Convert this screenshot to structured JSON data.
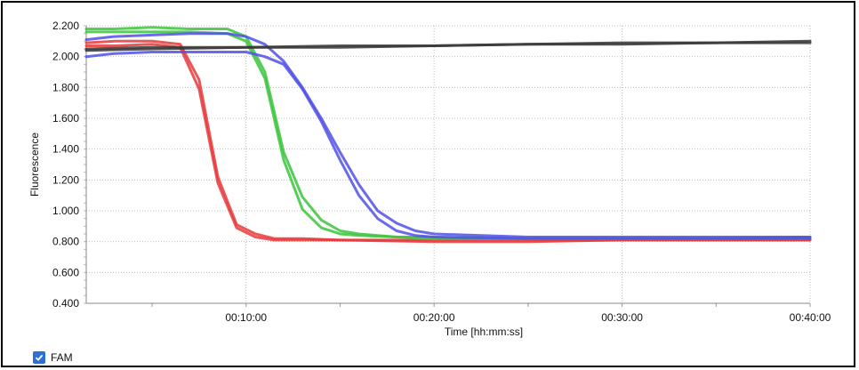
{
  "chart_data": {
    "type": "line",
    "title": "",
    "xlabel": "Time [hh:mm:ss]",
    "ylabel": "Fluorescence",
    "x_unit": "minutes",
    "xlim": [
      1.5,
      40
    ],
    "ylim": [
      0.4,
      2.2
    ],
    "x_ticks": [
      10,
      20,
      30,
      40
    ],
    "x_tick_labels": [
      "00:10:00",
      "00:20:00",
      "00:30:00",
      "00:40:00"
    ],
    "y_ticks": [
      0.4,
      0.6,
      0.8,
      1.0,
      1.2,
      1.4,
      1.6,
      1.8,
      2.0,
      2.2
    ],
    "y_tick_labels": [
      "0.400",
      "0.600",
      "0.800",
      "1.000",
      "1.200",
      "1.400",
      "1.600",
      "1.800",
      "2.000",
      "2.200"
    ],
    "grid": true,
    "legend": {
      "position": "bottom-left",
      "label": "FAM",
      "checked": true
    },
    "series": [
      {
        "color": "#e8383b",
        "x": [
          1.5,
          3,
          5,
          6.5,
          7.5,
          8.5,
          9.5,
          10.5,
          11.5,
          13,
          15,
          20,
          25,
          30,
          35,
          40
        ],
        "y": [
          2.09,
          2.1,
          2.1,
          2.08,
          1.85,
          1.22,
          0.91,
          0.85,
          0.82,
          0.82,
          0.81,
          0.81,
          0.81,
          0.81,
          0.81,
          0.81
        ]
      },
      {
        "color": "#e8383b",
        "x": [
          1.5,
          3,
          5,
          6.5,
          7.5,
          8.5,
          9.5,
          10.5,
          11.5,
          13,
          15,
          20,
          25,
          30,
          35,
          40
        ],
        "y": [
          2.07,
          2.07,
          2.08,
          2.06,
          1.79,
          1.18,
          0.89,
          0.83,
          0.81,
          0.81,
          0.81,
          0.8,
          0.8,
          0.81,
          0.81,
          0.81
        ]
      },
      {
        "color": "#3cc43c",
        "x": [
          1.5,
          3,
          5,
          7,
          9,
          10,
          11,
          12,
          13,
          14,
          15,
          16,
          18,
          20,
          25,
          30,
          35,
          40
        ],
        "y": [
          2.18,
          2.18,
          2.19,
          2.18,
          2.18,
          2.13,
          1.9,
          1.38,
          1.09,
          0.94,
          0.87,
          0.85,
          0.83,
          0.83,
          0.82,
          0.82,
          0.82,
          0.83
        ]
      },
      {
        "color": "#3cc43c",
        "x": [
          1.5,
          3,
          5,
          7,
          9,
          10,
          11,
          12,
          13,
          14,
          15,
          16,
          18,
          20,
          25,
          30,
          35,
          40
        ],
        "y": [
          2.16,
          2.16,
          2.16,
          2.16,
          2.15,
          2.1,
          1.86,
          1.33,
          1.01,
          0.89,
          0.85,
          0.84,
          0.83,
          0.82,
          0.82,
          0.82,
          0.82,
          0.82
        ]
      },
      {
        "color": "#5050e8",
        "x": [
          1.5,
          3,
          5,
          7,
          9,
          10,
          11,
          12,
          13,
          14,
          15,
          16,
          17,
          18,
          19,
          20,
          25,
          30,
          35,
          40
        ],
        "y": [
          2.11,
          2.13,
          2.14,
          2.15,
          2.15,
          2.13,
          2.08,
          1.97,
          1.8,
          1.6,
          1.38,
          1.17,
          1.0,
          0.92,
          0.87,
          0.85,
          0.83,
          0.83,
          0.83,
          0.83
        ]
      },
      {
        "color": "#5050e8",
        "x": [
          1.5,
          3,
          5,
          7,
          9,
          10,
          11,
          12,
          13,
          14,
          15,
          16,
          17,
          18,
          19,
          20,
          25,
          30,
          35,
          40
        ],
        "y": [
          2.0,
          2.02,
          2.03,
          2.03,
          2.03,
          2.03,
          2.0,
          1.95,
          1.79,
          1.58,
          1.33,
          1.1,
          0.95,
          0.87,
          0.84,
          0.83,
          0.82,
          0.82,
          0.82,
          0.82
        ]
      },
      {
        "color": "#3a3a3a",
        "x": [
          1.5,
          5,
          10,
          15,
          20,
          25,
          30,
          35,
          40
        ],
        "y": [
          2.04,
          2.05,
          2.06,
          2.06,
          2.07,
          2.08,
          2.08,
          2.09,
          2.1
        ]
      },
      {
        "color": "#3a3a3a",
        "x": [
          1.5,
          5,
          10,
          15,
          20,
          25,
          30,
          35,
          40
        ],
        "y": [
          2.05,
          2.06,
          2.06,
          2.07,
          2.07,
          2.08,
          2.09,
          2.09,
          2.09
        ]
      }
    ]
  }
}
